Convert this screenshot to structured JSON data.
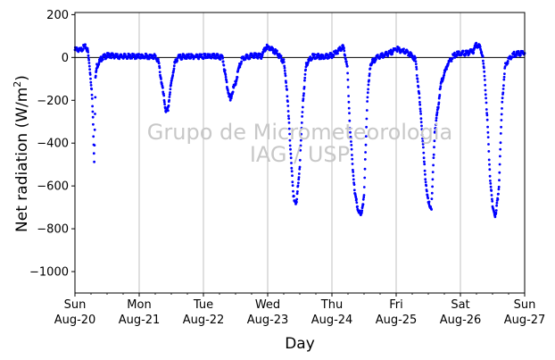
{
  "chart_data": {
    "type": "scatter",
    "xlabel": "Day",
    "ylabel": "Net radiation (W/m²)",
    "ylabel_main": "Net radiation (W/m",
    "ylabel_sup": "2",
    "ylabel_close": ")",
    "xlim": [
      0,
      7
    ],
    "ylim": [
      -1100,
      210
    ],
    "y_ticks": [
      200,
      0,
      -200,
      -400,
      -600,
      -800,
      -1000
    ],
    "y_tick_labels": [
      "200",
      "0",
      "−200",
      "−400",
      "−600",
      "−800",
      "−1000"
    ],
    "x_ticks": [
      {
        "value": 0,
        "day": "Sun",
        "date": "Aug-20"
      },
      {
        "value": 1,
        "day": "Mon",
        "date": "Aug-21"
      },
      {
        "value": 2,
        "day": "Tue",
        "date": "Aug-22"
      },
      {
        "value": 3,
        "day": "Wed",
        "date": "Aug-23"
      },
      {
        "value": 4,
        "day": "Thu",
        "date": "Aug-24"
      },
      {
        "value": 5,
        "day": "Fri",
        "date": "Aug-25"
      },
      {
        "value": 6,
        "day": "Sat",
        "date": "Aug-26"
      },
      {
        "value": 7,
        "day": "Sun",
        "date": "Aug-27"
      }
    ],
    "grid": "vertical",
    "zero_line": 0,
    "marker_color": "#0000ff",
    "series": [
      {
        "x": [
          0.0,
          0.04,
          0.08,
          0.12,
          0.17,
          0.2,
          0.23,
          0.26,
          0.28,
          0.3,
          0.32,
          0.34,
          0.36,
          0.38,
          0.4,
          0.43,
          0.47,
          0.5,
          0.55,
          0.6,
          0.65,
          0.7,
          0.8,
          0.9,
          1.0,
          1.1,
          1.2,
          1.25,
          1.3,
          1.34,
          1.38,
          1.42,
          1.45,
          1.48,
          1.51,
          1.55,
          1.6,
          1.7,
          1.8,
          1.9,
          2.0,
          2.1,
          2.2,
          2.3,
          2.34,
          2.38,
          2.42,
          2.46,
          2.5,
          2.55,
          2.6,
          2.65,
          2.7,
          2.8,
          2.9,
          2.98,
          3.05,
          3.1,
          3.15,
          3.2,
          3.25,
          3.3,
          3.35,
          3.4,
          3.45,
          3.5,
          3.55,
          3.6,
          3.7,
          3.8,
          3.9,
          4.0,
          4.1,
          4.17,
          4.2,
          4.24,
          4.28,
          4.32,
          4.36,
          4.4,
          4.45,
          4.5,
          4.55,
          4.6,
          4.7,
          4.8,
          4.9,
          5.0,
          5.1,
          5.2,
          5.3,
          5.35,
          5.4,
          5.45,
          5.5,
          5.55,
          5.6,
          5.7,
          5.8,
          5.9,
          6.0,
          6.1,
          6.2,
          6.25,
          6.3,
          6.34,
          6.38,
          6.42,
          6.46,
          6.5,
          6.55,
          6.6,
          6.65,
          6.7,
          6.8,
          6.9,
          7.0
        ],
        "y": [
          35,
          40,
          30,
          45,
          50,
          30,
          -50,
          -150,
          -280,
          -480,
          -100,
          -40,
          -30,
          -20,
          -10,
          0,
          5,
          8,
          10,
          8,
          5,
          5,
          5,
          5,
          5,
          5,
          5,
          5,
          -20,
          -100,
          -180,
          -260,
          -240,
          -160,
          -100,
          -30,
          0,
          5,
          5,
          5,
          5,
          5,
          5,
          0,
          -80,
          -150,
          -200,
          -150,
          -120,
          -50,
          -10,
          0,
          5,
          10,
          5,
          50,
          40,
          30,
          20,
          0,
          -20,
          -150,
          -400,
          -650,
          -680,
          -500,
          -200,
          -30,
          5,
          5,
          5,
          10,
          30,
          50,
          20,
          -50,
          -320,
          -500,
          -640,
          -700,
          -740,
          -650,
          -200,
          -30,
          0,
          10,
          20,
          40,
          30,
          20,
          -10,
          -150,
          -330,
          -550,
          -680,
          -700,
          -350,
          -120,
          -30,
          10,
          20,
          20,
          30,
          60,
          50,
          20,
          -100,
          -300,
          -550,
          -700,
          -740,
          -600,
          -200,
          -30,
          10,
          20,
          20
        ]
      }
    ],
    "watermark_line1": "Grupo de Micrometeorologia",
    "watermark_line2": "IAG / USP"
  }
}
